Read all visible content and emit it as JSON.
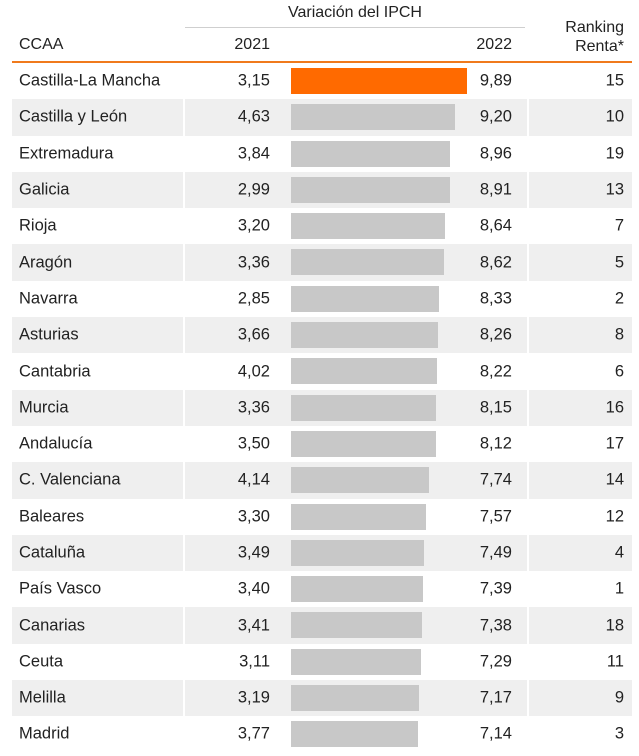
{
  "header": {
    "group_title": "Variación del IPCH",
    "col_region": "CCAA",
    "col_2021": "2021",
    "col_2022": "2022",
    "col_rank_line1": "Ranking",
    "col_rank_line2": "Renta*"
  },
  "colors": {
    "accent": "#ff6a00",
    "bar": "#c8c8c8",
    "header_rule": "#f07a1c",
    "row_shade": "#efefef"
  },
  "chart_data": {
    "type": "table",
    "highlight_index": 0,
    "bar_max": 9.89,
    "columns": [
      "CCAA",
      "2021",
      "2022",
      "Ranking Renta*"
    ],
    "rows": [
      {
        "region": "Castilla-La Mancha",
        "v2021": "3,15",
        "v2022": "9,89",
        "v2022_num": 9.89,
        "rank": "15"
      },
      {
        "region": "Castilla y León",
        "v2021": "4,63",
        "v2022": "9,20",
        "v2022_num": 9.2,
        "rank": "10"
      },
      {
        "region": "Extremadura",
        "v2021": "3,84",
        "v2022": "8,96",
        "v2022_num": 8.96,
        "rank": "19"
      },
      {
        "region": "Galicia",
        "v2021": "2,99",
        "v2022": "8,91",
        "v2022_num": 8.91,
        "rank": "13"
      },
      {
        "region": "Rioja",
        "v2021": "3,20",
        "v2022": "8,64",
        "v2022_num": 8.64,
        "rank": "7"
      },
      {
        "region": "Aragón",
        "v2021": "3,36",
        "v2022": "8,62",
        "v2022_num": 8.62,
        "rank": "5"
      },
      {
        "region": "Navarra",
        "v2021": "2,85",
        "v2022": "8,33",
        "v2022_num": 8.33,
        "rank": "2"
      },
      {
        "region": "Asturias",
        "v2021": "3,66",
        "v2022": "8,26",
        "v2022_num": 8.26,
        "rank": "8"
      },
      {
        "region": "Cantabria",
        "v2021": "4,02",
        "v2022": "8,22",
        "v2022_num": 8.22,
        "rank": "6"
      },
      {
        "region": "Murcia",
        "v2021": "3,36",
        "v2022": "8,15",
        "v2022_num": 8.15,
        "rank": "16"
      },
      {
        "region": "Andalucía",
        "v2021": "3,50",
        "v2022": "8,12",
        "v2022_num": 8.12,
        "rank": "17"
      },
      {
        "region": "C. Valenciana",
        "v2021": "4,14",
        "v2022": "7,74",
        "v2022_num": 7.74,
        "rank": "14"
      },
      {
        "region": "Baleares",
        "v2021": "3,30",
        "v2022": "7,57",
        "v2022_num": 7.57,
        "rank": "12"
      },
      {
        "region": "Cataluña",
        "v2021": "3,49",
        "v2022": "7,49",
        "v2022_num": 7.49,
        "rank": "4"
      },
      {
        "region": "País Vasco",
        "v2021": "3,40",
        "v2022": "7,39",
        "v2022_num": 7.39,
        "rank": "1"
      },
      {
        "region": "Canarias",
        "v2021": "3,41",
        "v2022": "7,38",
        "v2022_num": 7.38,
        "rank": "18"
      },
      {
        "region": "Ceuta",
        "v2021": "3,11",
        "v2022": "7,29",
        "v2022_num": 7.29,
        "rank": "11"
      },
      {
        "region": "Melilla",
        "v2021": "3,19",
        "v2022": "7,17",
        "v2022_num": 7.17,
        "rank": "9"
      },
      {
        "region": "Madrid",
        "v2021": "3,77",
        "v2022": "7,14",
        "v2022_num": 7.14,
        "rank": "3"
      }
    ]
  }
}
